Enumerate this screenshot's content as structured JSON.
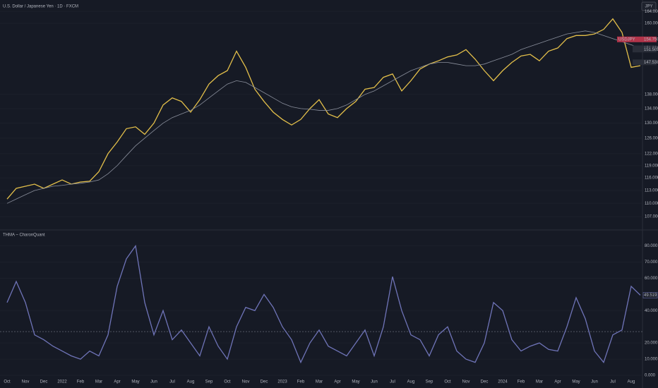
{
  "header": {
    "title": "U.S. Dollar / Japanese Yen · 1D · FXCM",
    "currency": "JPY"
  },
  "chart_data": [
    {
      "type": "line",
      "ylim": [
        105,
        166
      ],
      "log_scale": true,
      "yticks": [
        {
          "value": 164,
          "label": "164.000"
        },
        {
          "value": 160,
          "label": "160.000"
        },
        {
          "value": 138,
          "label": "138.000"
        },
        {
          "value": 134,
          "label": "134.000"
        },
        {
          "value": 130,
          "label": "130.000"
        },
        {
          "value": 126,
          "label": "126.000"
        },
        {
          "value": 122,
          "label": "122.000"
        },
        {
          "value": 119,
          "label": "119.000"
        },
        {
          "value": 116,
          "label": "116.000"
        },
        {
          "value": 113,
          "label": "113.000"
        },
        {
          "value": 110,
          "label": "110.000"
        },
        {
          "value": 107,
          "label": "107.000"
        }
      ],
      "symbol_tag": "USDJPY",
      "price_tags": [
        {
          "value": 154.75,
          "label": "154.750",
          "color": "#b2344a"
        },
        {
          "value": 151.898,
          "label": "151.898",
          "color": "#2a2e39"
        },
        {
          "value": 151.502,
          "label": "151.502",
          "color": "#2a2e39"
        },
        {
          "value": 147.538,
          "label": "147.538",
          "color": "#2a2e39"
        }
      ],
      "series": [
        {
          "color": "#e3bf4a",
          "values": [
            111,
            113.5,
            114,
            114.5,
            113.5,
            114.5,
            115.5,
            114.5,
            115,
            115.2,
            117.5,
            122,
            125,
            128.5,
            129,
            127,
            130,
            135,
            137,
            136,
            133,
            136.5,
            141,
            143.5,
            145,
            151,
            146,
            139.5,
            136,
            133,
            131,
            129.5,
            131,
            134,
            136.5,
            132.5,
            131.5,
            134,
            136,
            139.5,
            140,
            143,
            144,
            139,
            142,
            145.5,
            147,
            148,
            149.2,
            149.8,
            151.5,
            148.5,
            145,
            142,
            145,
            147.5,
            149.5,
            150,
            148,
            151,
            152,
            155,
            156,
            156,
            156.5,
            158,
            161.5,
            157,
            146,
            146.5
          ]
        },
        {
          "color": "#8a8f9c",
          "values": [
            110,
            111,
            112,
            113,
            113.5,
            114,
            114.2,
            114.5,
            114.7,
            115,
            115.5,
            117,
            119,
            121.5,
            124,
            126,
            128,
            130,
            131.5,
            132.5,
            133.5,
            135,
            137,
            139,
            141,
            142,
            141.5,
            140,
            138.5,
            137,
            135.5,
            134.5,
            134,
            133.8,
            133.5,
            133.5,
            134,
            135,
            136.5,
            138,
            139,
            140.5,
            142,
            143.5,
            145,
            146,
            147,
            147.5,
            147.5,
            147,
            146.5,
            146.5,
            147,
            148,
            149,
            150,
            151.5,
            152.5,
            153.5,
            154.5,
            155.5,
            156.5,
            157,
            157.5,
            157,
            156,
            155,
            154,
            153,
            152
          ]
        }
      ]
    },
    {
      "type": "line",
      "title": "THMA ~ CharonQuant",
      "categories": [
        "Oct",
        null,
        "Nov",
        null,
        "Dec",
        null,
        "2022",
        null,
        "Feb",
        null,
        "Mar",
        null,
        "Apr",
        null,
        "May",
        null,
        "Jun",
        null,
        "Jul",
        null,
        "Aug",
        null,
        "Sep",
        null,
        "Oct",
        null,
        "Nov",
        null,
        "Dec",
        null,
        "2023",
        null,
        "Feb",
        null,
        "Mar",
        null,
        "Apr",
        null,
        "May",
        null,
        "Jun",
        null,
        "Jul",
        null,
        "Aug",
        null,
        "Sep",
        null,
        "Oct",
        null,
        "Nov",
        null,
        "Dec",
        null,
        "2024",
        null,
        "Feb",
        null,
        "Mar",
        null,
        "Apr",
        null,
        "May",
        null,
        "Jun",
        null,
        "Jul",
        null,
        "Aug",
        null
      ],
      "ylim": [
        0,
        82
      ],
      "yticks": [
        {
          "value": 80,
          "label": "80.000"
        },
        {
          "value": 70,
          "label": "70.000"
        },
        {
          "value": 60,
          "label": "60.000"
        },
        {
          "value": 40,
          "label": "40.000"
        },
        {
          "value": 20,
          "label": "20.000"
        },
        {
          "value": 10,
          "label": "10.000"
        },
        {
          "value": 0,
          "label": "0.000"
        }
      ],
      "hline": 27,
      "last_value_label": "49.519",
      "series": [
        {
          "color": "#6f74b8",
          "values": [
            45,
            58,
            45,
            25,
            22,
            18,
            15,
            12,
            10,
            15,
            12,
            25,
            55,
            72,
            80,
            45,
            25,
            40,
            22,
            28,
            20,
            12,
            30,
            18,
            10,
            30,
            42,
            40,
            50,
            42,
            30,
            22,
            8,
            20,
            28,
            18,
            15,
            12,
            20,
            28,
            12,
            30,
            61,
            40,
            25,
            22,
            12,
            25,
            30,
            15,
            10,
            8,
            20,
            45,
            40,
            22,
            15,
            18,
            20,
            16,
            15,
            30,
            48,
            35,
            15,
            8,
            25,
            28,
            55,
            49.519
          ]
        }
      ]
    }
  ]
}
